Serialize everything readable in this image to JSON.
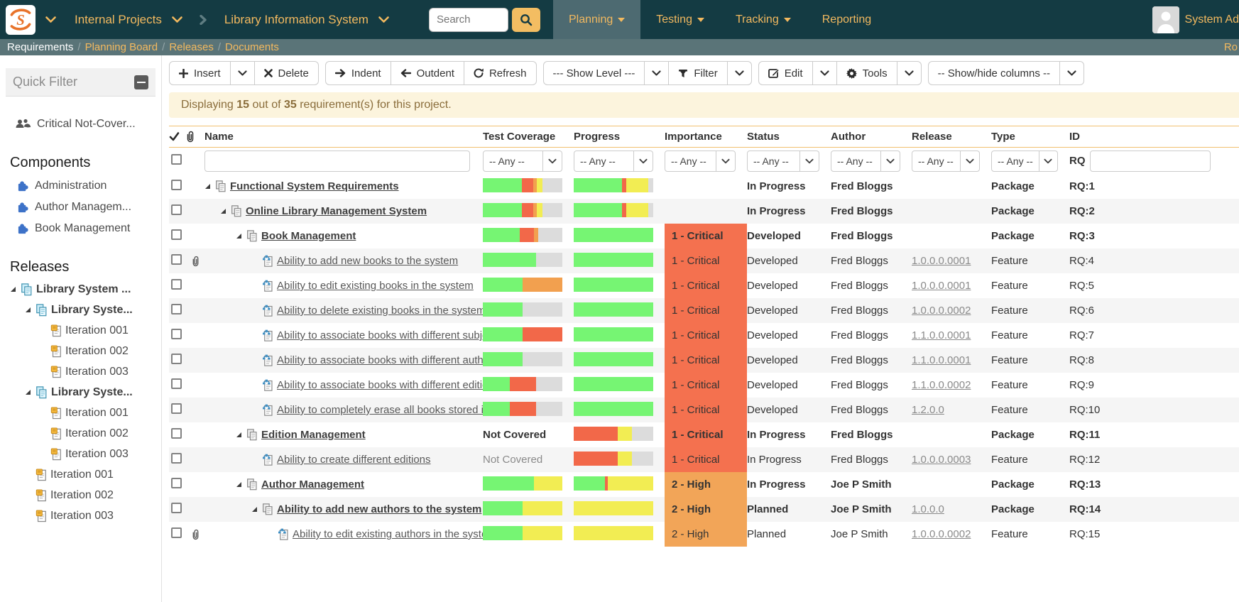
{
  "topbar": {
    "logo_letter": "S",
    "workspace": "Internal Projects",
    "project": "Library Information System",
    "search_placeholder": "Search",
    "nav": [
      {
        "label": "Planning"
      },
      {
        "label": "Testing"
      },
      {
        "label": "Tracking"
      },
      {
        "label": "Reporting"
      }
    ],
    "user_name": "System Ad"
  },
  "breadcrumb": {
    "items": [
      "Requirements",
      "Planning Board",
      "Releases",
      "Documents"
    ],
    "right_text": "Ro"
  },
  "sidebar": {
    "panel_title": "Quick Filter",
    "quick_filter_item": "Critical Not-Cover...",
    "components_title": "Components",
    "components": [
      "Administration",
      "Author Managem...",
      "Book Management"
    ],
    "releases_title": "Releases",
    "releases": [
      {
        "label": "Library System ...",
        "level": 0,
        "type": "release",
        "expanded": true
      },
      {
        "label": "Library Syste...",
        "level": 1,
        "type": "release",
        "expanded": true
      },
      {
        "label": "Iteration 001",
        "level": 2,
        "type": "iteration"
      },
      {
        "label": "Iteration 002",
        "level": 2,
        "type": "iteration"
      },
      {
        "label": "Iteration 003",
        "level": 2,
        "type": "iteration"
      },
      {
        "label": "Library Syste...",
        "level": 1,
        "type": "release",
        "expanded": true
      },
      {
        "label": "Iteration 001",
        "level": 2,
        "type": "iteration"
      },
      {
        "label": "Iteration 002",
        "level": 2,
        "type": "iteration"
      },
      {
        "label": "Iteration 003",
        "level": 2,
        "type": "iteration"
      },
      {
        "label": "Iteration 001",
        "level": 1,
        "type": "iteration"
      },
      {
        "label": "Iteration 002",
        "level": 1,
        "type": "iteration"
      },
      {
        "label": "Iteration 003",
        "level": 1,
        "type": "iteration"
      }
    ]
  },
  "toolbar": {
    "insert": "Insert",
    "delete": "Delete",
    "indent": "Indent",
    "outdent": "Outdent",
    "refresh": "Refresh",
    "show_level": "--- Show Level ---",
    "filter": "Filter",
    "edit": "Edit",
    "tools": "Tools",
    "show_hide": "-- Show/hide columns --"
  },
  "alert": {
    "part1": "Displaying ",
    "count": "15",
    "part2": " out of ",
    "total": "35",
    "part3": " requirement(s) for this project."
  },
  "table": {
    "columns": {
      "name": "Name",
      "test_coverage": "Test Coverage",
      "progress": "Progress",
      "importance": "Importance",
      "status": "Status",
      "author": "Author",
      "release": "Release",
      "type": "Type",
      "id": "ID"
    },
    "any_label": "-- Any --",
    "id_prefix": "RQ",
    "rows": [
      {
        "name": "Functional System Requirements",
        "lvl": 0,
        "tri": true,
        "icon": "package",
        "clip": false,
        "bold": true,
        "tc_bar": [
          [
            "green",
            49
          ],
          [
            "red",
            14
          ],
          [
            "orange",
            5
          ],
          [
            "yellow",
            7
          ],
          [
            "gray",
            25
          ]
        ],
        "p_bar": [
          [
            "green",
            61
          ],
          [
            "red",
            5
          ],
          [
            "yellow",
            28
          ],
          [
            "gray",
            6
          ]
        ],
        "imp": "",
        "impc": "",
        "status": "In Progress",
        "author": "Fred Bloggs",
        "release": "",
        "type": "Package",
        "id": "RQ:1"
      },
      {
        "name": "Online Library Management System",
        "lvl": 1,
        "tri": true,
        "icon": "package",
        "clip": false,
        "bold": true,
        "tc_bar": [
          [
            "green",
            49
          ],
          [
            "red",
            14
          ],
          [
            "orange",
            5
          ],
          [
            "yellow",
            7
          ],
          [
            "gray",
            25
          ]
        ],
        "p_bar": [
          [
            "green",
            61
          ],
          [
            "red",
            5
          ],
          [
            "yellow",
            28
          ],
          [
            "gray",
            6
          ]
        ],
        "imp": "",
        "impc": "",
        "status": "In Progress",
        "author": "Fred Bloggs",
        "release": "",
        "type": "Package",
        "id": "RQ:2"
      },
      {
        "name": "Book Management",
        "lvl": 2,
        "tri": true,
        "icon": "package",
        "clip": false,
        "bold": true,
        "tc_bar": [
          [
            "green",
            46
          ],
          [
            "red",
            18
          ],
          [
            "orange",
            6
          ],
          [
            "gray",
            30
          ]
        ],
        "p_bar": [
          [
            "green",
            100
          ]
        ],
        "imp": "1 - Critical",
        "impc": "critical",
        "status": "Developed",
        "author": "Fred Bloggs",
        "release": "",
        "type": "Package",
        "id": "RQ:3"
      },
      {
        "name": "Ability to add new books to the system",
        "lvl": 3,
        "tri": false,
        "icon": "feature",
        "clip": true,
        "bold": false,
        "tc_bar": [
          [
            "green",
            67
          ],
          [
            "gray",
            33
          ]
        ],
        "p_bar": [
          [
            "green",
            100
          ]
        ],
        "imp": "1 - Critical",
        "impc": "critical",
        "status": "Developed",
        "author": "Fred Bloggs",
        "release": "1.0.0.0.0001",
        "type": "Feature",
        "id": "RQ:4"
      },
      {
        "name": "Ability to edit existing books in the system",
        "lvl": 3,
        "tri": false,
        "icon": "feature",
        "clip": false,
        "bold": false,
        "tc_bar": [
          [
            "green",
            50
          ],
          [
            "orange",
            50
          ]
        ],
        "p_bar": [
          [
            "green",
            100
          ]
        ],
        "imp": "1 - Critical",
        "impc": "critical",
        "status": "Developed",
        "author": "Fred Bloggs",
        "release": "1.0.0.0.0001",
        "type": "Feature",
        "id": "RQ:5"
      },
      {
        "name": "Ability to delete existing books in the system",
        "lvl": 3,
        "tri": false,
        "icon": "feature",
        "clip": false,
        "bold": false,
        "tc_bar": [
          [
            "green",
            50
          ],
          [
            "gray",
            50
          ]
        ],
        "p_bar": [
          [
            "green",
            100
          ]
        ],
        "imp": "1 - Critical",
        "impc": "critical",
        "status": "Developed",
        "author": "Fred Bloggs",
        "release": "1.0.0.0.0002",
        "type": "Feature",
        "id": "RQ:6"
      },
      {
        "name": "Ability to associate books with different subjects",
        "lvl": 3,
        "tri": false,
        "icon": "feature",
        "clip": false,
        "bold": false,
        "tc_bar": [
          [
            "green",
            50
          ],
          [
            "red",
            50
          ]
        ],
        "p_bar": [
          [
            "green",
            100
          ]
        ],
        "imp": "1 - Critical",
        "impc": "critical",
        "status": "Developed",
        "author": "Fred Bloggs",
        "release": "1.1.0.0.0001",
        "type": "Feature",
        "id": "RQ:7"
      },
      {
        "name": "Ability to associate books with different authors",
        "lvl": 3,
        "tri": false,
        "icon": "feature",
        "clip": false,
        "bold": false,
        "tc_bar": [
          [
            "green",
            50
          ],
          [
            "gray",
            50
          ]
        ],
        "p_bar": [
          [
            "green",
            100
          ]
        ],
        "imp": "1 - Critical",
        "impc": "critical",
        "status": "Developed",
        "author": "Fred Bloggs",
        "release": "1.1.0.0.0001",
        "type": "Feature",
        "id": "RQ:8"
      },
      {
        "name": "Ability to associate books with different editions",
        "lvl": 3,
        "tri": false,
        "icon": "feature",
        "clip": false,
        "bold": false,
        "tc_bar": [
          [
            "green",
            34
          ],
          [
            "red",
            33
          ],
          [
            "gray",
            33
          ]
        ],
        "p_bar": [
          [
            "green",
            100
          ]
        ],
        "imp": "1 - Critical",
        "impc": "critical",
        "status": "Developed",
        "author": "Fred Bloggs",
        "release": "1.1.0.0.0002",
        "type": "Feature",
        "id": "RQ:9"
      },
      {
        "name": "Ability to completely erase all books stored in th...",
        "lvl": 3,
        "tri": false,
        "icon": "feature",
        "clip": false,
        "bold": false,
        "tc_bar": [
          [
            "green",
            34
          ],
          [
            "red",
            33
          ],
          [
            "gray",
            33
          ]
        ],
        "p_bar": [
          [
            "green",
            100
          ]
        ],
        "imp": "1 - Critical",
        "impc": "critical",
        "status": "Developed",
        "author": "Fred Bloggs",
        "release": "1.2.0.0",
        "type": "Feature",
        "id": "RQ:10"
      },
      {
        "name": "Edition Management",
        "lvl": 2,
        "tri": true,
        "icon": "package",
        "clip": false,
        "bold": true,
        "tc_text": "Not Covered",
        "p_bar": [
          [
            "red",
            55
          ],
          [
            "yellow",
            18
          ],
          [
            "gray",
            27
          ]
        ],
        "imp": "1 - Critical",
        "impc": "critical",
        "status": "In Progress",
        "author": "Fred Bloggs",
        "release": "",
        "type": "Package",
        "id": "RQ:11"
      },
      {
        "name": "Ability to create different editions",
        "lvl": 3,
        "tri": false,
        "icon": "feature",
        "clip": false,
        "bold": false,
        "tc_text": "Not Covered",
        "p_bar": [
          [
            "red",
            55
          ],
          [
            "yellow",
            18
          ],
          [
            "gray",
            27
          ]
        ],
        "imp": "1 - Critical",
        "impc": "critical",
        "status": "In Progress",
        "author": "Fred Bloggs",
        "release": "1.0.0.0.0003",
        "type": "Feature",
        "id": "RQ:12"
      },
      {
        "name": "Author Management",
        "lvl": 2,
        "tri": true,
        "icon": "package",
        "clip": false,
        "bold": true,
        "tc_bar": [
          [
            "green",
            64
          ],
          [
            "yellow",
            36
          ]
        ],
        "p_bar": [
          [
            "green",
            39
          ],
          [
            "red",
            4
          ],
          [
            "yellow",
            57
          ]
        ],
        "imp": "2 - High",
        "impc": "high",
        "status": "In Progress",
        "author": "Joe P Smith",
        "release": "",
        "type": "Package",
        "id": "RQ:13"
      },
      {
        "name": "Ability to add new authors to the system",
        "lvl": 3,
        "tri": true,
        "icon": "package",
        "clip": false,
        "bold": true,
        "tc_bar": [
          [
            "green",
            50
          ],
          [
            "yellow",
            50
          ]
        ],
        "p_bar": [
          [
            "yellow",
            100
          ]
        ],
        "imp": "2 - High",
        "impc": "high",
        "status": "Planned",
        "author": "Joe P Smith",
        "release": "1.0.0.0",
        "type": "Package",
        "id": "RQ:14"
      },
      {
        "name": "Ability to edit existing authors in the system",
        "lvl": 4,
        "tri": false,
        "icon": "feature",
        "clip": true,
        "bold": false,
        "tc_bar": [
          [
            "green",
            50
          ],
          [
            "yellow",
            50
          ]
        ],
        "p_bar": [
          [
            "yellow",
            100
          ]
        ],
        "imp": "2 - High",
        "impc": "high",
        "status": "Planned",
        "author": "Joe P Smith",
        "release": "1.0.0.0.0002",
        "type": "Feature",
        "id": "RQ:15"
      }
    ]
  },
  "colors": {
    "green": "#76f573",
    "red": "#f26849",
    "orange": "#f2a04f",
    "yellow": "#f2ed53",
    "gray": "#dcdcdc",
    "critical_bg": "#f4714f",
    "high_bg": "#f2a558",
    "accent": "#f3b95f",
    "topbar_bg": "#143b43"
  }
}
